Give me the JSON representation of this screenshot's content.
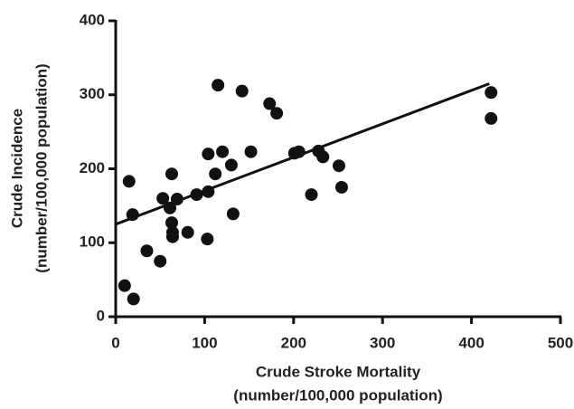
{
  "chart_data": {
    "type": "scatter",
    "x_label": [
      "Crude Stroke Mortality",
      "(number/100,000 population)"
    ],
    "y_label": [
      "Crude Incidence",
      "(number/100,000 population)"
    ],
    "x": [
      10,
      20,
      15,
      19,
      35,
      50,
      53,
      63,
      61,
      63,
      64,
      64,
      69,
      81,
      91,
      104,
      104,
      103,
      112,
      115,
      120,
      130,
      132,
      142,
      152,
      173,
      181,
      201,
      206,
      220,
      228,
      233,
      251,
      254,
      422,
      422
    ],
    "y": [
      42,
      24,
      183,
      138,
      89,
      75,
      160,
      193,
      147,
      127,
      114,
      108,
      159,
      114,
      165,
      220,
      169,
      105,
      193,
      313,
      223,
      205,
      139,
      305,
      223,
      288,
      275,
      221,
      223,
      165,
      224,
      216,
      204,
      175,
      303,
      268
    ],
    "color": "#111111",
    "fit_line": {
      "x": [
        0,
        420
      ],
      "y": [
        125,
        315
      ]
    },
    "xlim": [
      0,
      500
    ],
    "xticks": [
      0,
      100,
      200,
      300,
      400,
      500
    ],
    "ylim": [
      0,
      400
    ],
    "yticks": [
      0,
      100,
      200,
      300,
      400
    ]
  }
}
